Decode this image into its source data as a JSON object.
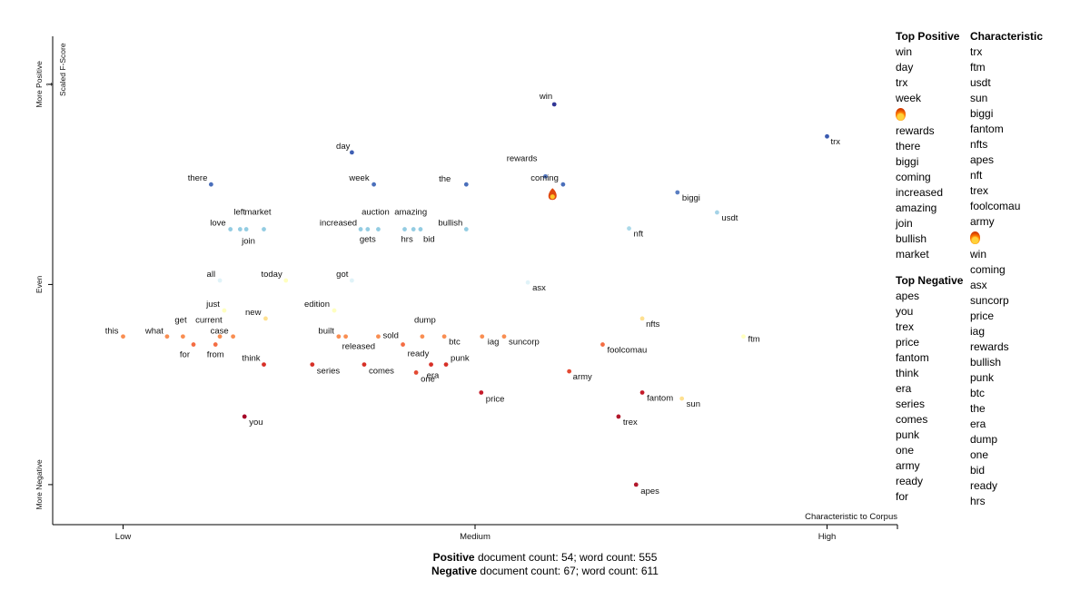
{
  "chart_data": {
    "type": "scatter",
    "ylabel": "Scaled F-Score",
    "xlabel": "Characteristic to Corpus",
    "y_ticks": [
      {
        "label": "More Positive",
        "value": 1
      },
      {
        "label": "Even",
        "value": 0.5
      },
      {
        "label": "More Negative",
        "value": 0
      }
    ],
    "y_small_tick": "1",
    "x_ticks": [
      {
        "label": "Low",
        "value": 0.1
      },
      {
        "label": "Medium",
        "value": 0.5
      },
      {
        "label": "High",
        "value": 0.9
      }
    ],
    "xlim": [
      0.02,
      0.98
    ],
    "ylim": [
      -0.1,
      1.12
    ],
    "points": [
      {
        "term": "win",
        "x": 0.59,
        "y": 0.95,
        "color": "#313695"
      },
      {
        "term": "trx",
        "x": 0.9,
        "y": 0.87,
        "color": "#3a5ab0"
      },
      {
        "term": "day",
        "x": 0.36,
        "y": 0.83,
        "color": "#3f5fb3"
      },
      {
        "term": "there",
        "x": 0.2,
        "y": 0.75,
        "color": "#4a6fbb"
      },
      {
        "term": "week",
        "x": 0.385,
        "y": 0.75,
        "color": "#4a6fbb"
      },
      {
        "term": "rewards",
        "x": 0.58,
        "y": 0.77,
        "color": "#4f73bd"
      },
      {
        "term": "the",
        "x": 0.49,
        "y": 0.75,
        "color": "#4a6fbb"
      },
      {
        "term": "coming",
        "x": 0.6,
        "y": 0.75,
        "color": "#4a6fbb"
      },
      {
        "term": "biggi",
        "x": 0.73,
        "y": 0.73,
        "color": "#5a7ec2"
      },
      {
        "term": "usdt",
        "x": 0.775,
        "y": 0.68,
        "color": "#a5d3e7"
      },
      {
        "term": "nft",
        "x": 0.675,
        "y": 0.64,
        "color": "#abd9e9"
      },
      {
        "term": "left",
        "x": 0.233,
        "y": 0.638,
        "color": "#93cce2"
      },
      {
        "term": "market",
        "x": 0.26,
        "y": 0.638,
        "color": "#93cce2"
      },
      {
        "term": "love",
        "x": 0.222,
        "y": 0.638,
        "color": "#93cce2"
      },
      {
        "term": "join",
        "x": 0.24,
        "y": 0.638,
        "color": "#93cce2"
      },
      {
        "term": "auction",
        "x": 0.39,
        "y": 0.638,
        "color": "#93cce2"
      },
      {
        "term": "amazing",
        "x": 0.43,
        "y": 0.638,
        "color": "#93cce2"
      },
      {
        "term": "increased",
        "x": 0.37,
        "y": 0.638,
        "color": "#93cce2"
      },
      {
        "term": "gets",
        "x": 0.378,
        "y": 0.638,
        "color": "#93cce2"
      },
      {
        "term": "bullish",
        "x": 0.49,
        "y": 0.638,
        "color": "#93cce2"
      },
      {
        "term": "hrs",
        "x": 0.42,
        "y": 0.638,
        "color": "#93cce2"
      },
      {
        "term": "bid",
        "x": 0.438,
        "y": 0.638,
        "color": "#93cce2"
      },
      {
        "term": "all",
        "x": 0.21,
        "y": 0.51,
        "color": "#e0f3f8"
      },
      {
        "term": "today",
        "x": 0.285,
        "y": 0.51,
        "color": "#ffffbf"
      },
      {
        "term": "got",
        "x": 0.36,
        "y": 0.51,
        "color": "#e0f3f8"
      },
      {
        "term": "asx",
        "x": 0.56,
        "y": 0.505,
        "color": "#e0f3f8"
      },
      {
        "term": "just",
        "x": 0.215,
        "y": 0.435,
        "color": "#ffffbf"
      },
      {
        "term": "edition",
        "x": 0.34,
        "y": 0.435,
        "color": "#ffffbf"
      },
      {
        "term": "new",
        "x": 0.262,
        "y": 0.415,
        "color": "#fee090"
      },
      {
        "term": "nfts",
        "x": 0.69,
        "y": 0.415,
        "color": "#fee090"
      },
      {
        "term": "this",
        "x": 0.1,
        "y": 0.37,
        "color": "#f98e52"
      },
      {
        "term": "what",
        "x": 0.15,
        "y": 0.37,
        "color": "#f98e52"
      },
      {
        "term": "get",
        "x": 0.168,
        "y": 0.37,
        "color": "#f98e52"
      },
      {
        "term": "current",
        "x": 0.21,
        "y": 0.37,
        "color": "#f98e52"
      },
      {
        "term": "case",
        "x": 0.225,
        "y": 0.37,
        "color": "#f98e52"
      },
      {
        "term": "for",
        "x": 0.18,
        "y": 0.35,
        "color": "#f46d43"
      },
      {
        "term": "from",
        "x": 0.205,
        "y": 0.35,
        "color": "#f46d43"
      },
      {
        "term": "built",
        "x": 0.345,
        "y": 0.37,
        "color": "#f98e52"
      },
      {
        "term": "released",
        "x": 0.353,
        "y": 0.37,
        "color": "#f98e52"
      },
      {
        "term": "sold",
        "x": 0.39,
        "y": 0.37,
        "color": "#f98e52"
      },
      {
        "term": "ready",
        "x": 0.418,
        "y": 0.35,
        "color": "#f46d43"
      },
      {
        "term": "dump",
        "x": 0.44,
        "y": 0.37,
        "color": "#f98e52"
      },
      {
        "term": "btc",
        "x": 0.465,
        "y": 0.37,
        "color": "#f98e52"
      },
      {
        "term": "iag",
        "x": 0.508,
        "y": 0.37,
        "color": "#f98e52"
      },
      {
        "term": "suncorp",
        "x": 0.533,
        "y": 0.37,
        "color": "#f98e52"
      },
      {
        "term": "foolcomau",
        "x": 0.645,
        "y": 0.35,
        "color": "#f46d43"
      },
      {
        "term": "ftm",
        "x": 0.805,
        "y": 0.37,
        "color": "#ffffbf"
      },
      {
        "term": "think",
        "x": 0.26,
        "y": 0.3,
        "color": "#d73027"
      },
      {
        "term": "series",
        "x": 0.315,
        "y": 0.3,
        "color": "#d73027"
      },
      {
        "term": "comes",
        "x": 0.374,
        "y": 0.3,
        "color": "#d73027"
      },
      {
        "term": "era",
        "x": 0.45,
        "y": 0.3,
        "color": "#d73027"
      },
      {
        "term": "punk",
        "x": 0.467,
        "y": 0.3,
        "color": "#d73027"
      },
      {
        "term": "one",
        "x": 0.433,
        "y": 0.28,
        "color": "#e34a33"
      },
      {
        "term": "army",
        "x": 0.607,
        "y": 0.283,
        "color": "#e34a33"
      },
      {
        "term": "price",
        "x": 0.507,
        "y": 0.23,
        "color": "#c51b2a"
      },
      {
        "term": "fantom",
        "x": 0.69,
        "y": 0.23,
        "color": "#c51b2a"
      },
      {
        "term": "sun",
        "x": 0.735,
        "y": 0.215,
        "color": "#fee090"
      },
      {
        "term": "trex",
        "x": 0.663,
        "y": 0.17,
        "color": "#b2182b"
      },
      {
        "term": "you",
        "x": 0.238,
        "y": 0.17,
        "color": "#a50026"
      },
      {
        "term": "apes",
        "x": 0.683,
        "y": 0.0,
        "color": "#b2182b"
      }
    ],
    "highlight": {
      "term": "",
      "x": 0.588,
      "y": 0.725,
      "icon": "fire-icon"
    }
  },
  "side_lists": {
    "top_positive": {
      "title": "Top Positive",
      "items": [
        "win",
        "day",
        "trx",
        "week",
        "",
        "rewards",
        "there",
        "biggi",
        "coming",
        "increased",
        "amazing",
        "join",
        "bullish",
        "market"
      ],
      "fire_index": 4
    },
    "characteristic": {
      "title": "Characteristic",
      "items": [
        "trx",
        "ftm",
        "usdt",
        "sun",
        "biggi",
        "fantom",
        "nfts",
        "apes",
        "nft",
        "trex",
        "foolcomau",
        "army",
        "",
        "win",
        "coming",
        "asx",
        "suncorp",
        "price",
        "iag",
        "rewards",
        "bullish",
        "punk",
        "btc",
        "the",
        "era",
        "dump",
        "one",
        "bid",
        "ready",
        "hrs"
      ],
      "fire_index": 12
    },
    "top_negative": {
      "title": "Top Negative",
      "items": [
        "apes",
        "you",
        "trex",
        "price",
        "fantom",
        "think",
        "era",
        "series",
        "comes",
        "punk",
        "one",
        "army",
        "ready",
        "for"
      ]
    }
  },
  "footer": {
    "positive_label": "Positive",
    "positive_text": " document count: 54; word count: 555",
    "negative_label": "Negative",
    "negative_text": " document count: 67; word count: 611"
  }
}
